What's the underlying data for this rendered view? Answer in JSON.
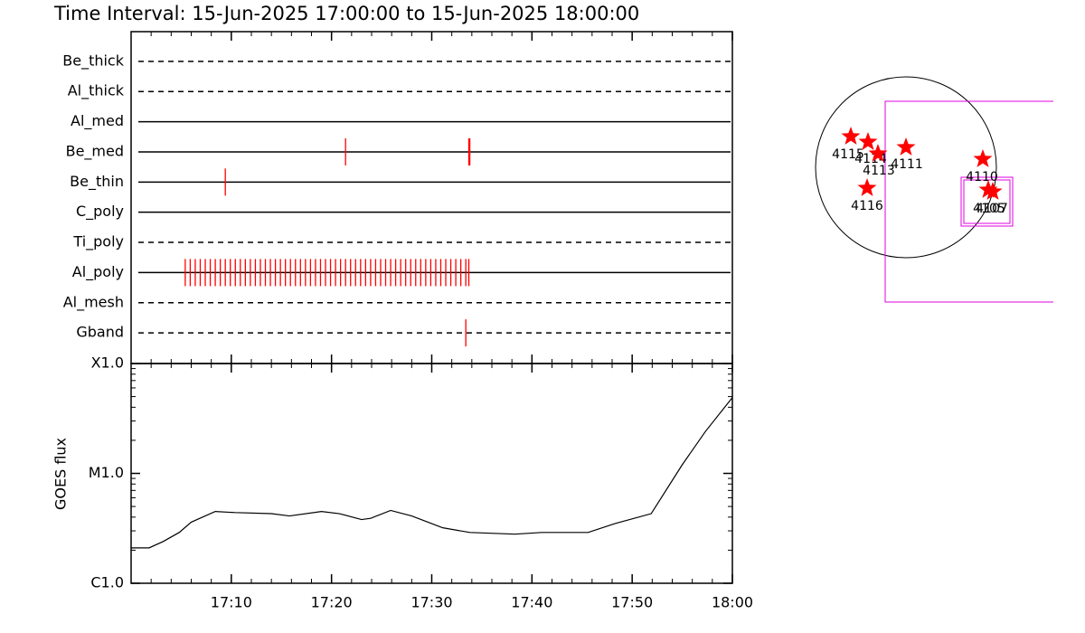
{
  "title": "Time Interval: 15-Jun-2025 17:00:00 to 15-Jun-2025 18:00:00",
  "chart_data": [
    {
      "type": "event",
      "categories": [
        "Be_thick",
        "Al_thick",
        "Al_med",
        "Be_med",
        "Be_thin",
        "C_poly",
        "Ti_poly",
        "Al_poly",
        "Al_mesh",
        "Gband"
      ],
      "line_styles": [
        "dashed",
        "dashed",
        "solid",
        "solid",
        "solid",
        "solid",
        "dashed",
        "solid",
        "dashed",
        "dashed"
      ],
      "events": [
        [],
        [],
        [],
        [
          21.4,
          33.7,
          33.8
        ],
        [
          9.4
        ],
        [],
        [],
        [
          5.4,
          5.9,
          6.4,
          6.9,
          7.4,
          7.9,
          8.4,
          8.9,
          9.4,
          9.9,
          10.4,
          10.9,
          11.4,
          11.9,
          12.4,
          12.9,
          13.4,
          13.9,
          14.4,
          14.9,
          15.4,
          15.9,
          16.4,
          16.9,
          17.4,
          17.9,
          18.4,
          18.9,
          19.4,
          19.9,
          20.4,
          20.9,
          21.4,
          21.9,
          22.4,
          22.9,
          23.4,
          23.9,
          24.4,
          24.9,
          25.4,
          25.9,
          26.4,
          26.9,
          27.4,
          27.9,
          28.4,
          28.9,
          29.4,
          29.9,
          30.4,
          30.9,
          31.4,
          31.9,
          32.4,
          32.9,
          33.4,
          33.7
        ],
        [],
        [
          33.4
        ]
      ],
      "color": "#ff0000",
      "xlim": [
        0,
        60
      ]
    },
    {
      "type": "line",
      "ylabel": "GOES flux",
      "x": [
        0,
        1.8,
        3.2,
        4.8,
        6.0,
        8.4,
        10.4,
        14.0,
        15.8,
        19.0,
        20.8,
        23.0,
        23.9,
        25.9,
        28.0,
        31.1,
        33.8,
        38.3,
        41.0,
        45.6,
        48.3,
        51.9,
        55.0,
        57.3,
        60
      ],
      "values": [
        2.1e-06,
        2.1e-06,
        2.4e-06,
        2.9e-06,
        3.6e-06,
        4.5e-06,
        4.4e-06,
        4.3e-06,
        4.1e-06,
        4.5e-06,
        4.3e-06,
        3.8e-06,
        3.9e-06,
        4.6e-06,
        4.1e-06,
        3.2e-06,
        2.9e-06,
        2.8e-06,
        2.9e-06,
        2.9e-06,
        3.5e-06,
        4.3e-06,
        1.2e-05,
        2.4e-05,
        4.9e-05
      ],
      "color": "#000000",
      "log_scale": true,
      "xlim": [
        0,
        60
      ],
      "xticks": [
        {
          "value": 10,
          "label": "17:10"
        },
        {
          "value": 20,
          "label": "17:20"
        },
        {
          "value": 30,
          "label": "17:30"
        },
        {
          "value": 40,
          "label": "17:40"
        },
        {
          "value": 50,
          "label": "17:50"
        },
        {
          "value": 60,
          "label": "18:00"
        }
      ],
      "ylim": [
        1e-06,
        0.0001
      ],
      "yticks": [
        {
          "value": 1e-06,
          "label": "C1.0"
        },
        {
          "value": 1e-05,
          "label": "M1.0"
        },
        {
          "value": 0.0001,
          "label": "X1.0"
        }
      ]
    }
  ],
  "map": {
    "regions": [
      "4115",
      "4114",
      "4113",
      "4111",
      "4110",
      "4116",
      "4105",
      "4107"
    ]
  }
}
